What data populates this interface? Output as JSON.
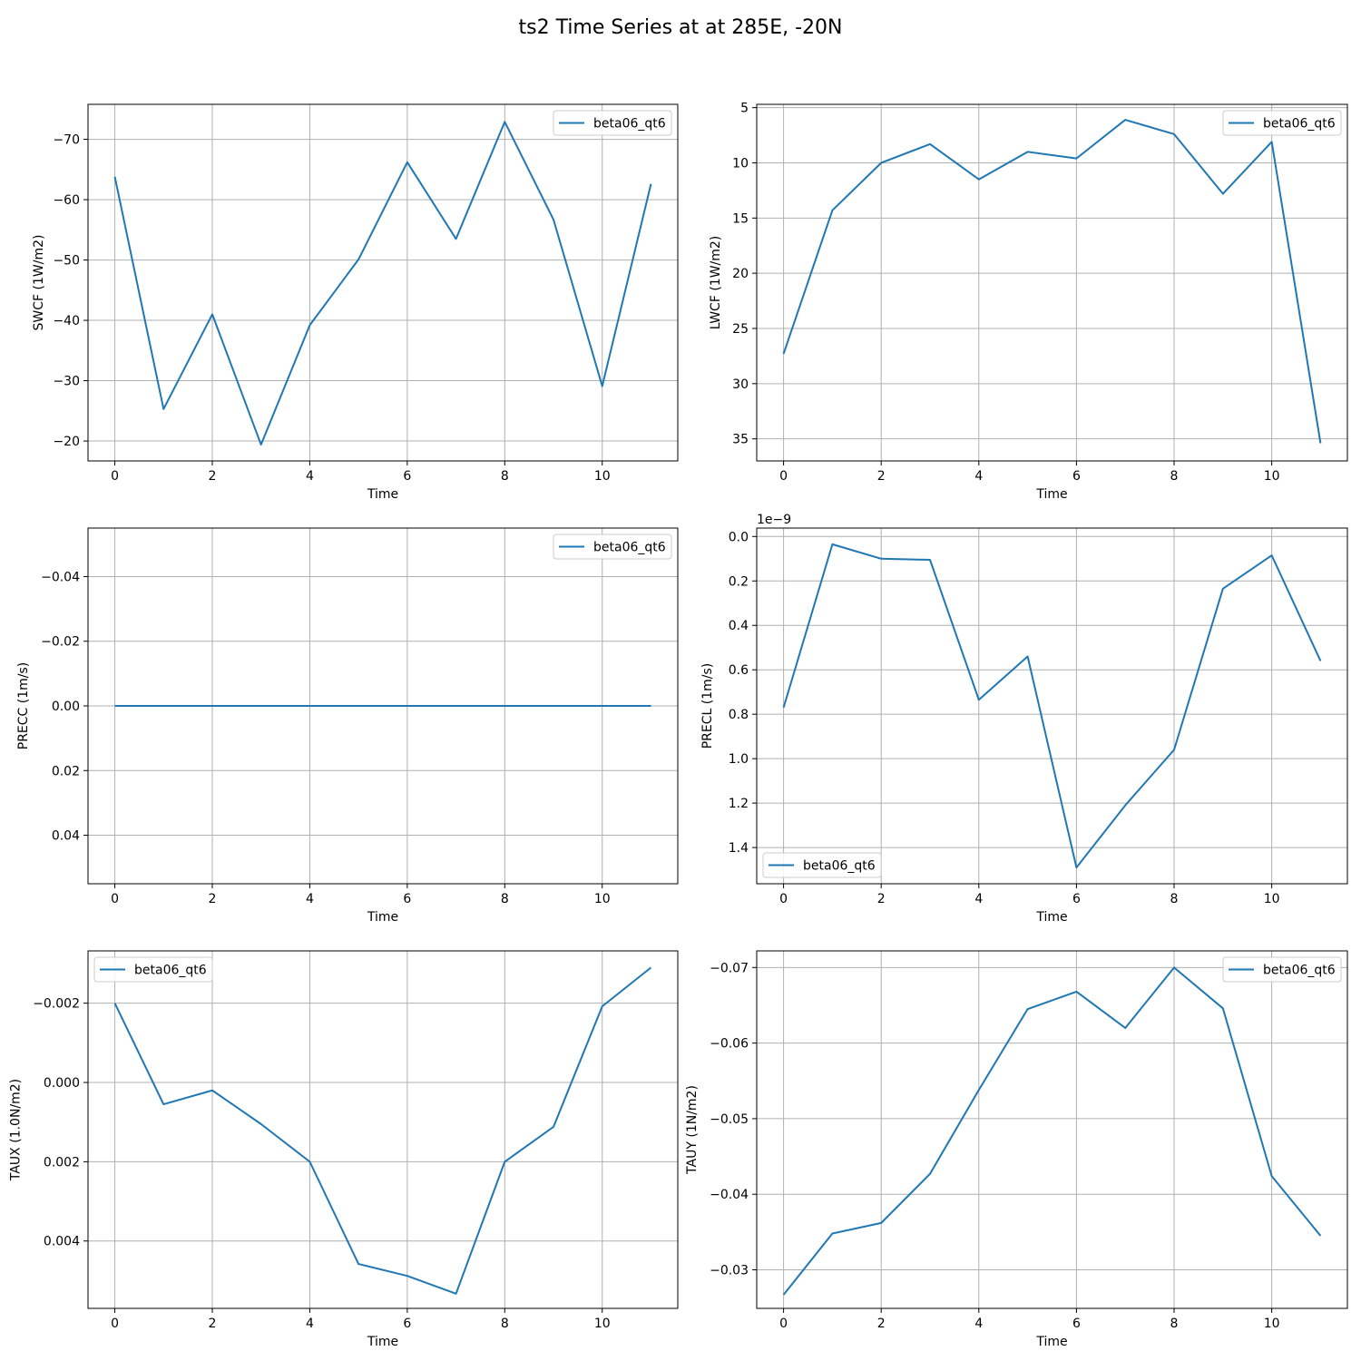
{
  "figure": {
    "title": "ts2 Time Series at at 285E, -20N",
    "line_color": "#1f77b4",
    "grid_color": "#b0b0b0"
  },
  "chart_data": [
    {
      "type": "line",
      "xlabel": "Time",
      "ylabel": "SWCF (1W/m2)",
      "x": [
        0,
        1,
        2,
        3,
        4,
        5,
        6,
        7,
        8,
        9,
        10,
        11
      ],
      "series": [
        {
          "name": "beta06_qt6",
          "values": [
            -63.8,
            -25.3,
            -41.0,
            -19.4,
            -39.2,
            -50.1,
            -66.2,
            -53.5,
            -72.9,
            -56.7,
            -29.1,
            -62.6
          ]
        }
      ],
      "ylim": [
        -16.7,
        -75.8
      ],
      "y_inverted": true,
      "xticks": [
        0,
        2,
        4,
        6,
        8,
        10
      ],
      "yticks": [
        -70,
        -60,
        -50,
        -40,
        -30,
        -20
      ],
      "ytick_labels": [
        "−70",
        "−60",
        "−50",
        "−40",
        "−30",
        "−20"
      ],
      "legend": "upper right",
      "grid": true
    },
    {
      "type": "line",
      "xlabel": "Time",
      "ylabel": "LWCF (1W/m2)",
      "x": [
        0,
        1,
        2,
        3,
        4,
        5,
        6,
        7,
        8,
        9,
        10,
        11
      ],
      "series": [
        {
          "name": "beta06_qt6",
          "values": [
            27.3,
            14.3,
            10.0,
            8.3,
            11.5,
            9.0,
            9.6,
            6.1,
            7.4,
            12.8,
            8.1,
            35.4
          ]
        }
      ],
      "ylim": [
        37.0,
        4.7
      ],
      "y_inverted": true,
      "xticks": [
        0,
        2,
        4,
        6,
        8,
        10
      ],
      "yticks": [
        5,
        10,
        15,
        20,
        25,
        30,
        35
      ],
      "ytick_labels": [
        "5",
        "10",
        "15",
        "20",
        "25",
        "30",
        "35"
      ],
      "legend": "upper right",
      "grid": true
    },
    {
      "type": "line",
      "xlabel": "Time",
      "ylabel": "PRECC (1m/s)",
      "x": [
        0,
        1,
        2,
        3,
        4,
        5,
        6,
        7,
        8,
        9,
        10,
        11
      ],
      "series": [
        {
          "name": "beta06_qt6",
          "values": [
            0,
            0,
            0,
            0,
            0,
            0,
            0,
            0,
            0,
            0,
            0,
            0
          ]
        }
      ],
      "ylim": [
        0.055,
        -0.055
      ],
      "y_inverted": true,
      "xticks": [
        0,
        2,
        4,
        6,
        8,
        10
      ],
      "yticks": [
        -0.04,
        -0.02,
        0.0,
        0.02,
        0.04
      ],
      "ytick_labels": [
        "−0.04",
        "−0.02",
        "0.00",
        "0.02",
        "0.04"
      ],
      "legend": "upper right",
      "grid": true
    },
    {
      "type": "line",
      "xlabel": "Time",
      "ylabel": "PRECL (1m/s)",
      "x": [
        0,
        1,
        2,
        3,
        4,
        5,
        6,
        7,
        8,
        9,
        10,
        11
      ],
      "series": [
        {
          "name": "beta06_qt6",
          "values": [
            0.77,
            0.035,
            0.1,
            0.105,
            0.735,
            0.54,
            1.49,
            1.21,
            0.96,
            0.235,
            0.085,
            0.56
          ]
        }
      ],
      "ylim": [
        1.563,
        -0.038
      ],
      "y_inverted": true,
      "y_offset_text": "1e−9",
      "xticks": [
        0,
        2,
        4,
        6,
        8,
        10
      ],
      "yticks": [
        0.0,
        0.2,
        0.4,
        0.6,
        0.8,
        1.0,
        1.2,
        1.4
      ],
      "ytick_labels": [
        "0.0",
        "0.2",
        "0.4",
        "0.6",
        "0.8",
        "1.0",
        "1.2",
        "1.4"
      ],
      "legend": "lower left",
      "grid": true
    },
    {
      "type": "line",
      "xlabel": "Time",
      "ylabel": "TAUX (1.0N/m2)",
      "x": [
        0,
        1,
        2,
        3,
        4,
        5,
        6,
        7,
        8,
        9,
        10,
        11
      ],
      "series": [
        {
          "name": "beta06_qt6",
          "values": [
            -0.002,
            0.00055,
            0.0002,
            0.00105,
            0.002,
            0.00458,
            0.00488,
            0.00533,
            0.002,
            0.00112,
            -0.00192,
            -0.0029
          ]
        }
      ],
      "ylim": [
        0.0057,
        -0.00332
      ],
      "y_inverted": true,
      "xticks": [
        0,
        2,
        4,
        6,
        8,
        10
      ],
      "yticks": [
        -0.002,
        0.0,
        0.002,
        0.004
      ],
      "ytick_labels": [
        "−0.002",
        "0.000",
        "0.002",
        "0.004"
      ],
      "legend": "upper left",
      "grid": true
    },
    {
      "type": "line",
      "xlabel": "Time",
      "ylabel": "TAUY (1N/m2)",
      "x": [
        0,
        1,
        2,
        3,
        4,
        5,
        6,
        7,
        8,
        9,
        10,
        11
      ],
      "series": [
        {
          "name": "beta06_qt6",
          "values": [
            -0.0267,
            -0.0348,
            -0.0362,
            -0.0427,
            -0.0538,
            -0.0645,
            -0.0668,
            -0.062,
            -0.07,
            -0.0646,
            -0.0424,
            -0.0345
          ]
        }
      ],
      "ylim": [
        -0.0249,
        -0.0722
      ],
      "y_inverted": true,
      "xticks": [
        0,
        2,
        4,
        6,
        8,
        10
      ],
      "yticks": [
        -0.07,
        -0.06,
        -0.05,
        -0.04,
        -0.03
      ],
      "ytick_labels": [
        "−0.07",
        "−0.06",
        "−0.05",
        "−0.04",
        "−0.03"
      ],
      "legend": "upper right",
      "grid": true
    }
  ]
}
